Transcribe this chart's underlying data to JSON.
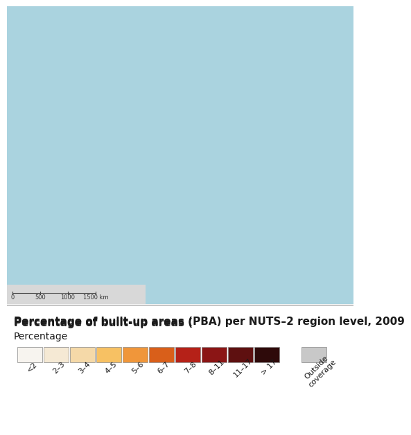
{
  "title_line1": "Percentage of built-up areas (",
  "title_pba": "PBA",
  "title_line2": ") per NUTS–2 region level, 2009",
  "subtitle": "Percentage",
  "legend_labels": [
    "<2",
    "2–3",
    "3–4",
    "4–5",
    "5–6",
    "6–7",
    "7–8",
    "8–11",
    "11–17",
    "> 17"
  ],
  "legend_colors": [
    "#f7f4ef",
    "#f5e9d4",
    "#f5d9a8",
    "#f7c163",
    "#f0963a",
    "#d95f1a",
    "#b52118",
    "#8b1515",
    "#5e1010",
    "#2e0a0a"
  ],
  "outside_color": "#c8c8c8",
  "outside_label": "Outside\ncoverage",
  "map_bg_color": "#aad3df",
  "land_outside_color": "#b0b0b0",
  "panel_bg": "#f0f0f0",
  "separator_color": "#888888",
  "title_fontsize": 11,
  "subtitle_fontsize": 9,
  "legend_fontsize": 8
}
